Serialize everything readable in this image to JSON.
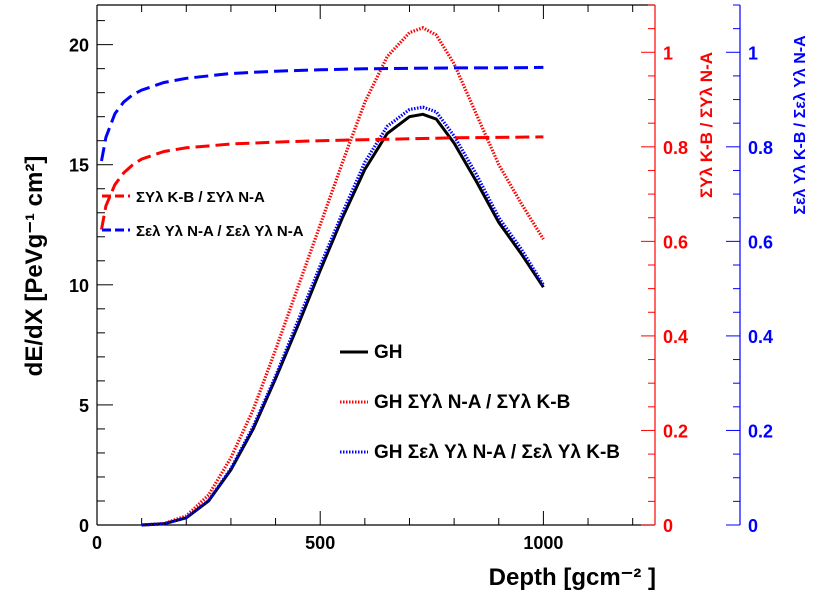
{
  "chart_data": {
    "type": "line",
    "xlabel": "Depth [gcm⁻² ]",
    "ylabel": "dE/dX [PeVg⁻¹ cm²]",
    "xlim": [
      0,
      1250
    ],
    "ylim": [
      0,
      21.65
    ],
    "x_ticks": [
      0,
      500,
      1000
    ],
    "y_ticks": [
      0,
      5,
      10,
      15,
      20
    ],
    "right_axis_red": {
      "label": "ΣYλ K-B / ΣYλ N-A",
      "color": "#ff0000",
      "ylim": [
        0,
        1.1
      ],
      "ticks": [
        "0",
        "0.2",
        "0.4",
        "0.6",
        "0.8",
        "1"
      ]
    },
    "right_axis_blue": {
      "label": "Σελ Yλ K-B / Σελ Yλ N-A",
      "color": "#0000ff",
      "ylim": [
        0,
        1.1
      ],
      "ticks": [
        "0",
        "0.2",
        "0.4",
        "0.6",
        "0.8",
        "1"
      ]
    },
    "series": [
      {
        "name": "GH",
        "axis": "left",
        "color": "#000000",
        "style": "solid",
        "x": [
          100,
          150,
          200,
          250,
          300,
          350,
          400,
          450,
          500,
          550,
          600,
          650,
          700,
          730,
          760,
          800,
          850,
          900,
          950,
          1000
        ],
        "y": [
          0.0,
          0.05,
          0.3,
          1.0,
          2.3,
          4.0,
          6.1,
          8.3,
          10.6,
          12.8,
          14.8,
          16.3,
          17.0,
          17.1,
          16.9,
          15.9,
          14.3,
          12.6,
          11.3,
          9.9
        ]
      },
      {
        "name": "GH ΣYλ N-A / ΣYλ K-B",
        "axis": "left",
        "color": "#ff0000",
        "style": "dotted",
        "x": [
          100,
          150,
          200,
          250,
          300,
          350,
          400,
          450,
          500,
          550,
          600,
          650,
          700,
          730,
          760,
          800,
          850,
          900,
          950,
          1000
        ],
        "y": [
          0.0,
          0.06,
          0.38,
          1.25,
          2.8,
          4.8,
          7.3,
          9.9,
          12.5,
          15.1,
          17.6,
          19.5,
          20.5,
          20.7,
          20.4,
          19.2,
          17.1,
          15.0,
          13.4,
          11.9
        ]
      },
      {
        "name": "GH Σελ Yλ N-A / Σελ Yλ K-B",
        "axis": "left",
        "color": "#0000ff",
        "style": "dotted",
        "x": [
          100,
          150,
          200,
          250,
          300,
          350,
          400,
          450,
          500,
          550,
          600,
          650,
          700,
          730,
          760,
          800,
          850,
          900,
          950,
          1000
        ],
        "y": [
          0.0,
          0.05,
          0.31,
          1.02,
          2.35,
          4.1,
          6.2,
          8.5,
          10.8,
          13.0,
          15.1,
          16.6,
          17.3,
          17.4,
          17.2,
          16.2,
          14.6,
          12.8,
          11.5,
          10.0
        ]
      },
      {
        "name": "ΣYλ K-B / ΣYλ N-A",
        "axis": "right",
        "color": "#ff0000",
        "style": "dashed",
        "x": [
          10,
          20,
          40,
          60,
          80,
          100,
          150,
          200,
          300,
          400,
          500,
          600,
          700,
          800,
          900,
          1000
        ],
        "y": [
          0.625,
          0.675,
          0.72,
          0.745,
          0.762,
          0.774,
          0.79,
          0.798,
          0.806,
          0.81,
          0.813,
          0.815,
          0.817,
          0.819,
          0.82,
          0.821
        ]
      },
      {
        "name": "Σελ Yλ N-A / Σελ Yλ N-A",
        "axis": "right",
        "color": "#0000ff",
        "style": "dashed",
        "x": [
          10,
          20,
          40,
          60,
          80,
          100,
          150,
          200,
          300,
          400,
          500,
          600,
          700,
          800,
          900,
          1000
        ],
        "y": [
          0.77,
          0.82,
          0.87,
          0.895,
          0.91,
          0.92,
          0.936,
          0.945,
          0.955,
          0.96,
          0.963,
          0.965,
          0.966,
          0.967,
          0.967,
          0.968
        ]
      }
    ],
    "legend_top": [
      {
        "label": "ΣYλ K-B / ΣYλ N-A",
        "color": "#ff0000",
        "style": "dashed"
      },
      {
        "label": "Σελ Yλ N-A / Σελ Yλ N-A",
        "color": "#0000ff",
        "style": "dashed"
      }
    ],
    "legend_bottom": [
      {
        "label": "GH",
        "color": "#000000",
        "style": "solid"
      },
      {
        "label": "GH ΣYλ N-A / ΣYλ K-B",
        "color": "#ff0000",
        "style": "dotted"
      },
      {
        "label": "GH Σελ Yλ N-A / Σελ Yλ K-B",
        "color": "#0000ff",
        "style": "dotted"
      }
    ]
  }
}
